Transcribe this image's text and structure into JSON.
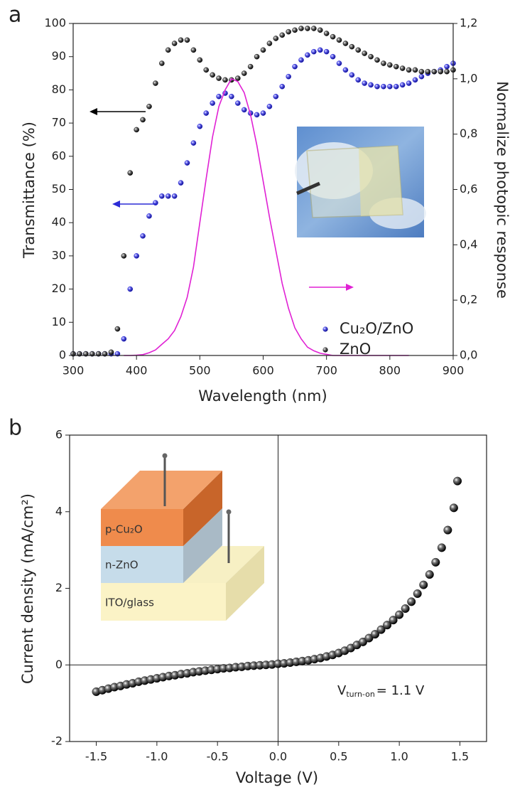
{
  "chart_data": [
    {
      "type": "scatter",
      "panel_label": "a",
      "xlabel": "Wavelength (nm)",
      "ylabel": "Transmittance (%)",
      "y2label": "Normalize photopic response",
      "x": [
        300,
        310,
        320,
        330,
        340,
        350,
        360,
        370,
        380,
        390,
        400,
        410,
        420,
        430,
        440,
        450,
        460,
        470,
        480,
        490,
        500,
        510,
        520,
        530,
        540,
        550,
        560,
        570,
        580,
        590,
        600,
        610,
        620,
        630,
        640,
        650,
        660,
        670,
        680,
        690,
        700,
        710,
        720,
        730,
        740,
        750,
        760,
        770,
        780,
        790,
        800,
        810,
        820,
        830,
        840,
        850,
        860,
        870,
        880,
        890,
        900
      ],
      "series": [
        {
          "name": "Cu₂O/ZnO",
          "color": "#2b2bd6",
          "values": [
            0.5,
            0.5,
            0.5,
            0.5,
            0.5,
            0.5,
            0.5,
            0.5,
            5,
            20,
            30,
            36,
            42,
            46,
            48,
            48,
            48,
            52,
            58,
            64,
            69,
            73,
            76,
            78,
            79,
            78,
            76,
            74,
            73,
            72.5,
            73,
            75,
            78,
            81,
            84,
            87,
            89,
            90.5,
            91.5,
            92,
            91.5,
            90,
            88,
            86,
            84.5,
            83,
            82,
            81.5,
            81,
            81,
            81,
            81,
            81.5,
            82,
            83,
            84,
            85,
            85.5,
            86,
            87,
            88
          ]
        },
        {
          "name": "ZnO",
          "color": "#111111",
          "values": [
            0.5,
            0.5,
            0.5,
            0.5,
            0.5,
            0.5,
            1,
            8,
            30,
            55,
            68,
            71,
            75,
            82,
            88,
            92,
            94,
            95,
            95,
            92,
            89,
            86,
            84.5,
            83.5,
            83,
            83,
            83.5,
            85,
            87,
            90,
            92,
            94,
            95.5,
            96.5,
            97.5,
            98,
            98.5,
            98.5,
            98.5,
            98,
            97,
            96,
            95,
            94,
            93,
            92,
            91,
            90,
            89,
            88,
            87.5,
            87,
            86.5,
            86,
            86,
            85.5,
            85.5,
            85.5,
            85.5,
            85.5,
            86
          ]
        },
        {
          "color": "#e021d4",
          "axis": "y2",
          "style": "line",
          "values": [
            null,
            null,
            null,
            null,
            null,
            null,
            null,
            null,
            0,
            0,
            0.001,
            0.003,
            0.01,
            0.02,
            0.04,
            0.06,
            0.09,
            0.14,
            0.21,
            0.32,
            0.48,
            0.64,
            0.79,
            0.9,
            0.96,
            1.0,
            0.99,
            0.95,
            0.87,
            0.76,
            0.63,
            0.5,
            0.38,
            0.26,
            0.17,
            0.1,
            0.06,
            0.03,
            0.017,
            0.008,
            0.004,
            0,
            0,
            0,
            0,
            0,
            0,
            0,
            0,
            0,
            0,
            0,
            0,
            0,
            null,
            null,
            null,
            null,
            null,
            null,
            null
          ]
        }
      ],
      "xlim": [
        300,
        900
      ],
      "xticks": [
        300,
        400,
        500,
        600,
        700,
        800,
        900
      ],
      "ylim": [
        0,
        100
      ],
      "yticks": [
        0,
        10,
        20,
        30,
        40,
        50,
        60,
        70,
        80,
        90,
        100
      ],
      "y2lim": [
        0,
        1.2
      ],
      "y2ticks": [
        {
          "value": 0,
          "label": "0,0"
        },
        {
          "value": 0.2,
          "label": "0,2"
        },
        {
          "value": 0.4,
          "label": "0,4"
        },
        {
          "value": 0.6,
          "label": "0,6"
        },
        {
          "value": 0.8,
          "label": "0,8"
        },
        {
          "value": 1.0,
          "label": "1,0"
        },
        {
          "value": 1.2,
          "label": "1,2"
        }
      ],
      "legend": "lower right"
    },
    {
      "type": "scatter",
      "panel_label": "b",
      "xlabel": "Voltage (V)",
      "ylabel": "Current density (mA/cm²)",
      "annotation": [
        "V",
        "turn-on",
        "= 1.1 V"
      ],
      "inset_labels": [
        "p-Cu₂O",
        "n-ZnO",
        "ITO/glass"
      ],
      "x": [
        -1.5,
        -1.45,
        -1.4,
        -1.35,
        -1.3,
        -1.25,
        -1.2,
        -1.15,
        -1.1,
        -1.05,
        -1.0,
        -0.95,
        -0.9,
        -0.85,
        -0.8,
        -0.75,
        -0.7,
        -0.65,
        -0.6,
        -0.55,
        -0.5,
        -0.45,
        -0.4,
        -0.35,
        -0.3,
        -0.25,
        -0.2,
        -0.15,
        -0.1,
        -0.05,
        0,
        0.05,
        0.1,
        0.15,
        0.2,
        0.25,
        0.3,
        0.35,
        0.4,
        0.45,
        0.5,
        0.55,
        0.6,
        0.65,
        0.7,
        0.75,
        0.8,
        0.85,
        0.9,
        0.95,
        1.0,
        1.05,
        1.1,
        1.15,
        1.2,
        1.25,
        1.3,
        1.35,
        1.4,
        1.45,
        1.48
      ],
      "series": [
        {
          "color": "#111111",
          "values": [
            -0.7,
            -0.66,
            -0.62,
            -0.58,
            -0.55,
            -0.51,
            -0.48,
            -0.44,
            -0.41,
            -0.38,
            -0.35,
            -0.32,
            -0.29,
            -0.27,
            -0.24,
            -0.22,
            -0.19,
            -0.17,
            -0.15,
            -0.13,
            -0.11,
            -0.09,
            -0.08,
            -0.06,
            -0.05,
            -0.03,
            -0.02,
            -0.01,
            0,
            0.01,
            0.03,
            0.04,
            0.06,
            0.08,
            0.1,
            0.12,
            0.15,
            0.18,
            0.22,
            0.26,
            0.31,
            0.37,
            0.44,
            0.52,
            0.6,
            0.7,
            0.8,
            0.92,
            1.04,
            1.17,
            1.31,
            1.47,
            1.65,
            1.86,
            2.09,
            2.36,
            2.68,
            3.06,
            3.52,
            4.1,
            4.8
          ]
        }
      ],
      "xlim": [
        -1.72,
        1.72
      ],
      "xticks": [
        -1.5,
        {
          "value": -1,
          "label": "-1.0"
        },
        -0.5,
        {
          "value": 0,
          "label": "0.0"
        },
        0.5,
        {
          "value": 1,
          "label": "1.0"
        },
        1.5
      ],
      "ylim": [
        -2,
        6
      ],
      "yticks": [
        -2,
        0,
        2,
        4,
        6
      ],
      "zero_lines": true
    }
  ]
}
